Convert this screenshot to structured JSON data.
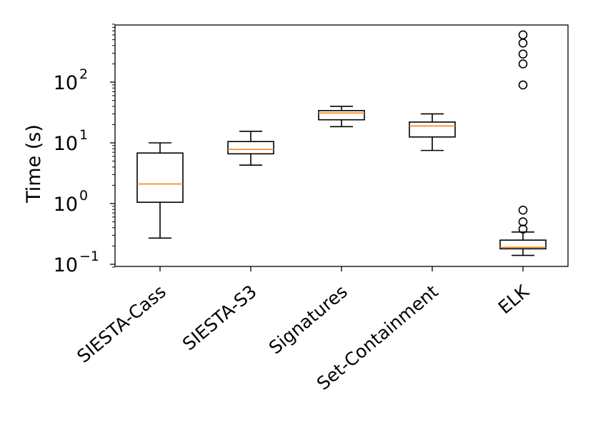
{
  "chart_data": {
    "type": "box",
    "title": "",
    "xlabel": "",
    "ylabel": "Time (s)",
    "yscale": "log",
    "ylim": [
      0.085,
      900
    ],
    "yticks": [
      {
        "value": 0.1,
        "base": "10",
        "exp": "−1"
      },
      {
        "value": 1,
        "base": "10",
        "exp": "0"
      },
      {
        "value": 10,
        "base": "10",
        "exp": "1"
      },
      {
        "value": 100,
        "base": "10",
        "exp": "2"
      }
    ],
    "grid": false,
    "categories": [
      "SIESTA-Cass",
      "SIESTA-S3",
      "Signatures",
      "Set-Containment",
      "ELK"
    ],
    "boxes": [
      {
        "name": "SIESTA-Cass",
        "whisker_low": 0.27,
        "q1": 1.05,
        "median": 2.1,
        "q3": 6.8,
        "whisker_high": 10.0,
        "outliers": []
      },
      {
        "name": "SIESTA-S3",
        "whisker_low": 4.3,
        "q1": 6.6,
        "median": 7.8,
        "q3": 10.5,
        "whisker_high": 15.5,
        "outliers": []
      },
      {
        "name": "Signatures",
        "whisker_low": 18.5,
        "q1": 24.0,
        "median": 31.0,
        "q3": 34.0,
        "whisker_high": 40.0,
        "outliers": []
      },
      {
        "name": "Set-Containment",
        "whisker_low": 7.5,
        "q1": 12.5,
        "median": 19.0,
        "q3": 22.0,
        "whisker_high": 30.0,
        "outliers": []
      },
      {
        "name": "ELK",
        "whisker_low": 0.14,
        "q1": 0.18,
        "median": 0.19,
        "q3": 0.25,
        "whisker_high": 0.34,
        "outliers": [
          0.38,
          0.5,
          0.78,
          90,
          200,
          290,
          440,
          600
        ]
      }
    ],
    "colors": {
      "box": "#000000",
      "median": "#ff7f0e"
    }
  }
}
